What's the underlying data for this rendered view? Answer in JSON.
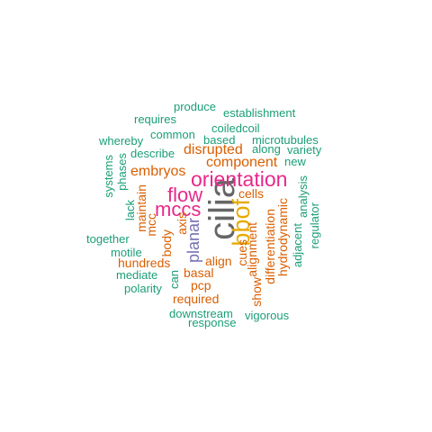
{
  "colors": {
    "green": "#1b9e77",
    "orange": "#d95f02",
    "purple": "#7570b3",
    "pink": "#e7298a",
    "mustard": "#e6ab02",
    "gray": "#666666"
  },
  "words": [
    {
      "text": "cilia",
      "color": "gray",
      "vertical": true
    },
    {
      "text": "orientation",
      "color": "pink",
      "vertical": false
    },
    {
      "text": "bbof",
      "color": "mustard",
      "vertical": true
    },
    {
      "text": "mccs",
      "color": "pink",
      "vertical": false
    },
    {
      "text": "flow",
      "color": "pink",
      "vertical": false
    },
    {
      "text": "planar",
      "color": "purple",
      "vertical": true
    },
    {
      "text": "disrupted",
      "color": "orange",
      "vertical": false
    },
    {
      "text": "component",
      "color": "orange",
      "vertical": false
    },
    {
      "text": "embryos",
      "color": "orange",
      "vertical": false
    },
    {
      "text": "cells",
      "color": "orange",
      "vertical": false
    },
    {
      "text": "maintain",
      "color": "orange",
      "vertical": true
    },
    {
      "text": "mcc",
      "color": "orange",
      "vertical": true
    },
    {
      "text": "body",
      "color": "orange",
      "vertical": true
    },
    {
      "text": "axis",
      "color": "orange",
      "vertical": true
    },
    {
      "text": "align",
      "color": "orange",
      "vertical": false
    },
    {
      "text": "hundreds",
      "color": "orange",
      "vertical": false
    },
    {
      "text": "basal",
      "color": "orange",
      "vertical": false
    },
    {
      "text": "pcp",
      "color": "orange",
      "vertical": false
    },
    {
      "text": "required",
      "color": "orange",
      "vertical": false
    },
    {
      "text": "cues",
      "color": "orange",
      "vertical": true
    },
    {
      "text": "show",
      "color": "orange",
      "vertical": true
    },
    {
      "text": "alignment",
      "color": "orange",
      "vertical": true
    },
    {
      "text": "differentiation",
      "color": "orange",
      "vertical": true
    },
    {
      "text": "hydrodynamic",
      "color": "orange",
      "vertical": true
    },
    {
      "text": "produce",
      "color": "green",
      "vertical": false
    },
    {
      "text": "establishment",
      "color": "green",
      "vertical": false
    },
    {
      "text": "requires",
      "color": "green",
      "vertical": false
    },
    {
      "text": "coiledcoil",
      "color": "green",
      "vertical": false
    },
    {
      "text": "whereby",
      "color": "green",
      "vertical": false
    },
    {
      "text": "common",
      "color": "green",
      "vertical": false
    },
    {
      "text": "based",
      "color": "green",
      "vertical": false
    },
    {
      "text": "microtubules",
      "color": "green",
      "vertical": false
    },
    {
      "text": "describe",
      "color": "green",
      "vertical": false
    },
    {
      "text": "along",
      "color": "green",
      "vertical": false
    },
    {
      "text": "variety",
      "color": "green",
      "vertical": false
    },
    {
      "text": "new",
      "color": "green",
      "vertical": false
    },
    {
      "text": "systems",
      "color": "green",
      "vertical": true
    },
    {
      "text": "phases",
      "color": "green",
      "vertical": true
    },
    {
      "text": "analysis",
      "color": "green",
      "vertical": true
    },
    {
      "text": "lack",
      "color": "green",
      "vertical": true
    },
    {
      "text": "regulator",
      "color": "green",
      "vertical": true
    },
    {
      "text": "adjacent",
      "color": "green",
      "vertical": true
    },
    {
      "text": "together",
      "color": "green",
      "vertical": false
    },
    {
      "text": "motile",
      "color": "green",
      "vertical": false
    },
    {
      "text": "mediate",
      "color": "green",
      "vertical": false
    },
    {
      "text": "can",
      "color": "green",
      "vertical": true
    },
    {
      "text": "polarity",
      "color": "green",
      "vertical": false
    },
    {
      "text": "downstream",
      "color": "green",
      "vertical": false
    },
    {
      "text": "vigorous",
      "color": "green",
      "vertical": false
    },
    {
      "text": "response",
      "color": "green",
      "vertical": false
    }
  ]
}
